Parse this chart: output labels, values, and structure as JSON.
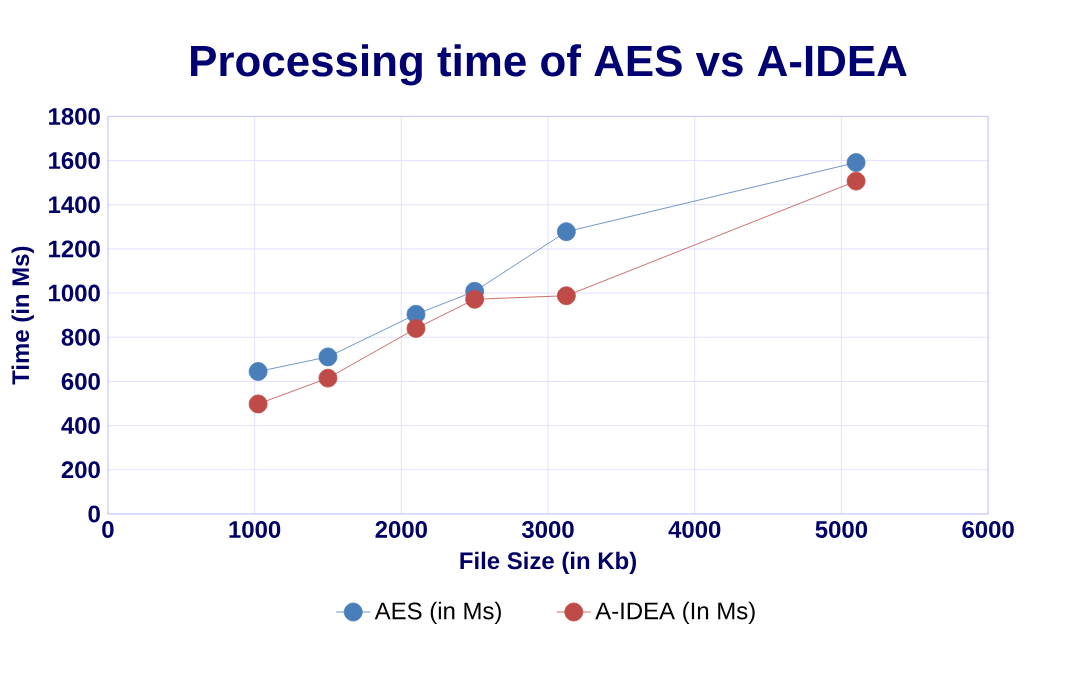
{
  "chart_data": {
    "type": "line",
    "title": "Processing time of AES vs A-IDEA",
    "xlabel": "File Size (in Kb)",
    "ylabel": "Time (in Ms)",
    "x": [
      1024,
      1500,
      2100,
      2500,
      3125,
      5100
    ],
    "series": [
      {
        "name": "AES (in Ms)",
        "color": "#4a7ebb",
        "values": [
          645,
          711,
          904,
          1008,
          1278,
          1591
        ]
      },
      {
        "name": "A-IDEA (In Ms)",
        "color": "#be4b48",
        "values": [
          498,
          615,
          840,
          972,
          988,
          1507
        ]
      }
    ],
    "xlim": [
      0,
      6000
    ],
    "xticks": [
      0,
      1000,
      2000,
      3000,
      4000,
      5000,
      6000
    ],
    "ylim": [
      0,
      1800
    ],
    "yticks": [
      0,
      200,
      400,
      600,
      800,
      1000,
      1200,
      1400,
      1600,
      1800
    ],
    "grid": true,
    "legend": "bottom",
    "marker": "circle",
    "line_style": "solid"
  }
}
